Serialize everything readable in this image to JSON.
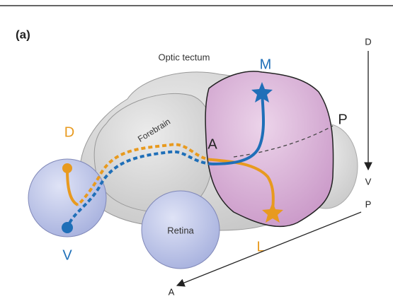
{
  "panel_label": "(a)",
  "regions": {
    "optic_tectum": "Optic tectum",
    "forebrain": "Forebrain",
    "retina": "Retina"
  },
  "markers": {
    "m": "M",
    "p": "P",
    "a": "A",
    "d": "D",
    "v": "V",
    "l": "L"
  },
  "axes": {
    "dv": {
      "start": "D",
      "end": "V"
    },
    "pa": {
      "start": "P",
      "end": "A"
    }
  }
}
